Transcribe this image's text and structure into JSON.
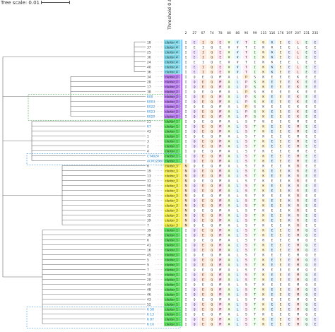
{
  "title": "Tree scale: 0.01",
  "threshold_label": "Threshold 0.01",
  "positions": [
    "2",
    "27",
    "67",
    "74",
    "78",
    "80",
    "86",
    "96",
    "99",
    "115",
    "116",
    "176",
    "197",
    "207",
    "231",
    "235"
  ],
  "groups": [
    {
      "cluster": "cluster_4",
      "color": "#7fd8e8",
      "bar": "#8ad0ff",
      "leaves": [
        "18",
        "37",
        "25",
        "30",
        "24",
        "40",
        "36"
      ],
      "seq": "I E I Q E V V T I K K E E L E E"
    },
    {
      "cluster": "cluster_2",
      "color": "#b97cf0",
      "bar": "#b97cf0",
      "leaves": [
        "34",
        "28",
        "17",
        "38",
        "K00",
        "K003",
        "K022",
        "K023",
        "K020"
      ],
      "seq": "I Q E Q M A L P S K E E E K E E"
    },
    {
      "cluster": "cluster_1",
      "color": "#5ee35e",
      "bar": "#5ee35e",
      "leaves": [
        "21",
        "K7",
        "43",
        "1",
        "3",
        "2",
        "4",
        "CT4024",
        "ACM12987"
      ],
      "seq": "I Q E Q M A L S T K E E E M E E"
    },
    {
      "cluster": "cluster_3",
      "color": "#f5f04a",
      "bar": "#f5f04a",
      "leaves": [
        "6",
        "19",
        "13",
        "31",
        "50",
        "11",
        "15",
        "35",
        "12",
        "33",
        "32",
        "39",
        "7"
      ],
      "seq": "N Q E Q M A L S T K E E K R E E"
    },
    {
      "cluster": "cluster_1",
      "color": "#5ee35e",
      "bar": "#5ee35e",
      "leaves": [
        "39",
        "36",
        "6",
        "41",
        "16",
        "45",
        "5",
        "9",
        "7",
        "10",
        "20",
        "44",
        "48",
        "46",
        "43",
        "52",
        "K 58",
        "K 13",
        "K 87",
        "K 10"
      ],
      "seq": "I Q E Q M A L S T K E E E M Q E"
    }
  ]
}
